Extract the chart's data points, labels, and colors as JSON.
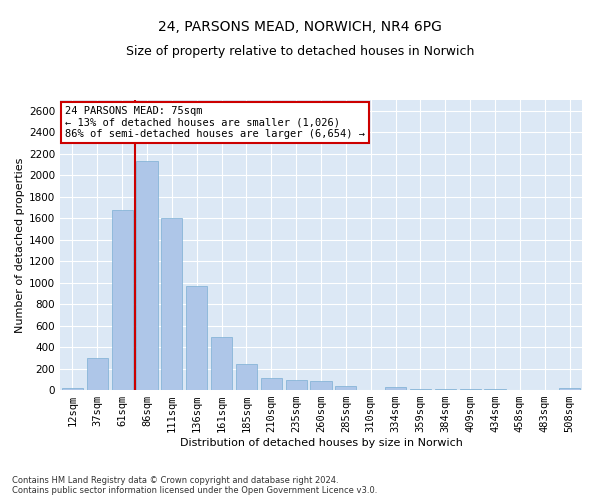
{
  "title": "24, PARSONS MEAD, NORWICH, NR4 6PG",
  "subtitle": "Size of property relative to detached houses in Norwich",
  "xlabel": "Distribution of detached houses by size in Norwich",
  "ylabel": "Number of detached properties",
  "categories": [
    "12sqm",
    "37sqm",
    "61sqm",
    "86sqm",
    "111sqm",
    "136sqm",
    "161sqm",
    "185sqm",
    "210sqm",
    "235sqm",
    "260sqm",
    "285sqm",
    "310sqm",
    "334sqm",
    "359sqm",
    "384sqm",
    "409sqm",
    "434sqm",
    "458sqm",
    "483sqm",
    "508sqm"
  ],
  "values": [
    20,
    295,
    1675,
    2135,
    1600,
    965,
    490,
    245,
    115,
    95,
    80,
    40,
    0,
    25,
    10,
    5,
    8,
    5,
    0,
    0,
    15
  ],
  "bar_color": "#aec6e8",
  "bar_edge_color": "#7bafd4",
  "vline_color": "#cc0000",
  "annotation_text": "24 PARSONS MEAD: 75sqm\n← 13% of detached houses are smaller (1,026)\n86% of semi-detached houses are larger (6,654) →",
  "annotation_box_color": "#ffffff",
  "annotation_box_edge_color": "#cc0000",
  "ylim": [
    0,
    2700
  ],
  "yticks": [
    0,
    200,
    400,
    600,
    800,
    1000,
    1200,
    1400,
    1600,
    1800,
    2000,
    2200,
    2400,
    2600
  ],
  "background_color": "#dce8f5",
  "footer_line1": "Contains HM Land Registry data © Crown copyright and database right 2024.",
  "footer_line2": "Contains public sector information licensed under the Open Government Licence v3.0.",
  "title_fontsize": 10,
  "axis_label_fontsize": 8,
  "tick_fontsize": 7.5,
  "annotation_fontsize": 7.5,
  "footer_fontsize": 6
}
